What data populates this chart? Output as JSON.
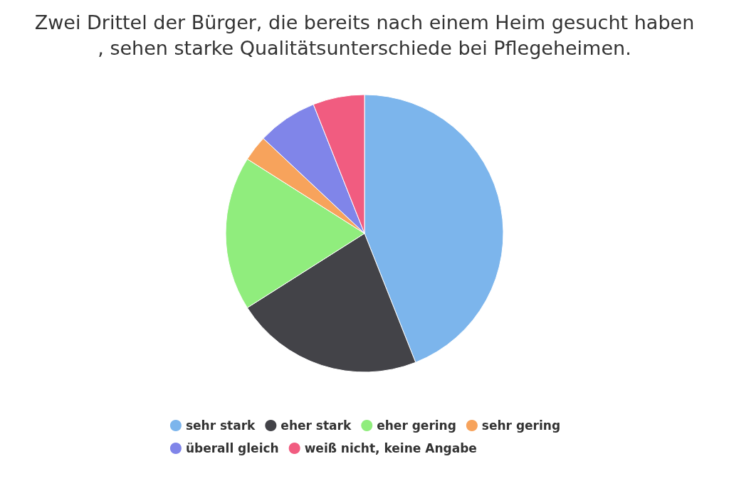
{
  "chart_data": {
    "type": "pie",
    "title": "Zwei Drittel der Bürger, die bereits nach einem Heim gesucht haben, sehen starke Qualitätsunterschiede bei Pflegeheimen.",
    "categories": [
      "sehr stark",
      "eher stark",
      "eher gering",
      "sehr gering",
      "überall gleich",
      "weiß nicht, keine Angabe"
    ],
    "values": [
      44,
      22,
      18,
      3,
      7,
      6
    ],
    "colors": [
      "#7cb5ec",
      "#434348",
      "#90ed7d",
      "#f7a35c",
      "#8085e9",
      "#f15c80"
    ],
    "legend": "bottom"
  }
}
